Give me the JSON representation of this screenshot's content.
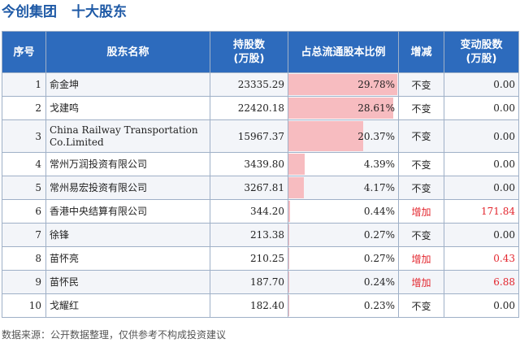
{
  "header": {
    "company": "今创集团",
    "subtitle": "十大股东"
  },
  "columns": {
    "index": "序号",
    "name": "股东名称",
    "shares_l1": "持股数",
    "shares_l2": "(万股)",
    "ratio": "占总流通股本比例",
    "change": "增减",
    "delta_l1": "变动股数",
    "delta_l2": "(万股)"
  },
  "rows": [
    {
      "index": "1",
      "name": "俞金坤",
      "shares": "23335.29",
      "ratio": "29.78%",
      "ratio_value": 29.78,
      "change": "不变",
      "delta": "0.00"
    },
    {
      "index": "2",
      "name": "戈建鸣",
      "shares": "22420.18",
      "ratio": "28.61%",
      "ratio_value": 28.61,
      "change": "不变",
      "delta": "0.00"
    },
    {
      "index": "3",
      "name": "China Railway Transportation Co.Limited",
      "shares": "15967.37",
      "ratio": "20.37%",
      "ratio_value": 20.37,
      "change": "不变",
      "delta": "0.00"
    },
    {
      "index": "4",
      "name": "常州万润投资有限公司",
      "shares": "3439.80",
      "ratio": "4.39%",
      "ratio_value": 4.39,
      "change": "不变",
      "delta": "0.00"
    },
    {
      "index": "5",
      "name": "常州易宏投资有限公司",
      "shares": "3267.81",
      "ratio": "4.17%",
      "ratio_value": 4.17,
      "change": "不变",
      "delta": "0.00"
    },
    {
      "index": "6",
      "name": "香港中央结算有限公司",
      "shares": "344.20",
      "ratio": "0.44%",
      "ratio_value": 0.44,
      "change": "增加",
      "delta": "171.84"
    },
    {
      "index": "7",
      "name": "徐锋",
      "shares": "213.38",
      "ratio": "0.27%",
      "ratio_value": 0.27,
      "change": "不变",
      "delta": "0.00"
    },
    {
      "index": "8",
      "name": "苗怀亮",
      "shares": "210.25",
      "ratio": "0.27%",
      "ratio_value": 0.27,
      "change": "增加",
      "delta": "0.43"
    },
    {
      "index": "9",
      "name": "苗怀民",
      "shares": "187.70",
      "ratio": "0.24%",
      "ratio_value": 0.24,
      "change": "增加",
      "delta": "6.88"
    },
    {
      "index": "10",
      "name": "戈耀红",
      "shares": "182.40",
      "ratio": "0.23%",
      "ratio_value": 0.23,
      "change": "不变",
      "delta": "0.00"
    }
  ],
  "colors": {
    "header_bg": "#2d6bbd",
    "bar": "#f7bcc0",
    "increase": "#e3252d",
    "title": "#1f5aa6"
  },
  "footer": "数据来源：公开数据整理，仅供参考不构成投资建议"
}
